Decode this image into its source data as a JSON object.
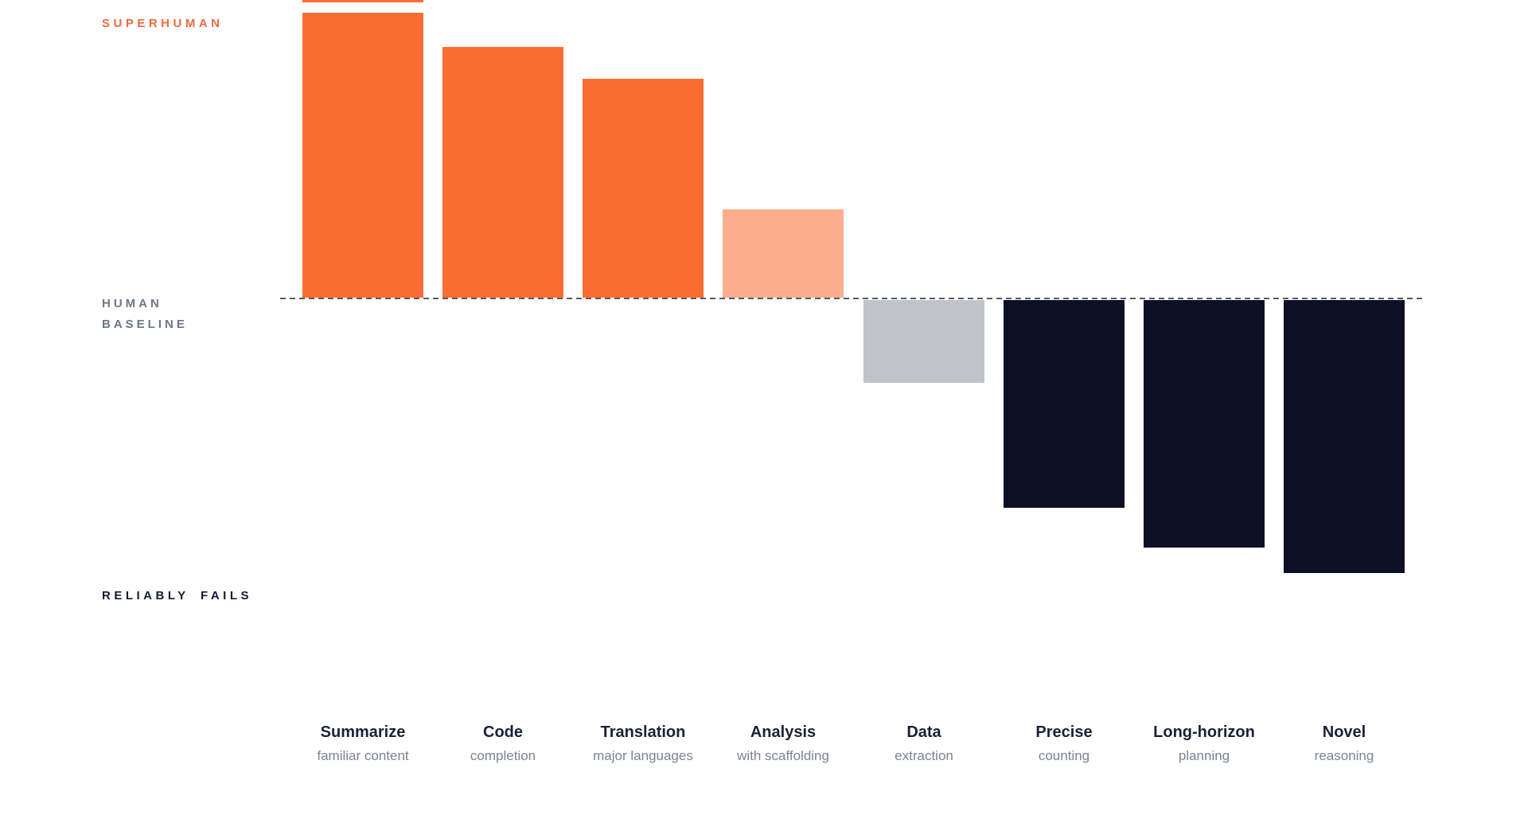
{
  "palette": {
    "orange": "#fc6d33",
    "light_orange": "#fdac8c",
    "gray": "#c2c3c9",
    "navy": "#0b1026",
    "baseline_line": "#575b63",
    "superhuman_text": "#ee6a3e",
    "baseline_text": "#6e7585",
    "fails_text": "#141c31",
    "category_title": "#1b2237",
    "category_sub": "#7c8391",
    "background": "#ffffff"
  },
  "chart_data": {
    "type": "bar",
    "title": "",
    "orientation": "vertical",
    "top_annotation": "SUPERHUMAN",
    "baseline_label_line1": "HUMAN",
    "baseline_label_line2": "BASELINE",
    "bottom_annotation": "RELIABLY FAILS",
    "value_unit": "relative capability vs human baseline (baseline = 0, percent of axis half-range; no numeric axis shown)",
    "ylim": [
      -100,
      100
    ],
    "grid": false,
    "legend": false,
    "baseline_style": "dashed",
    "categories": [
      {
        "label": "Summarize",
        "sublabel": "familiar content",
        "value": 100,
        "color": "orange",
        "clipped_at_top": true
      },
      {
        "label": "Code",
        "sublabel": "completion",
        "value": 88,
        "color": "orange",
        "clipped_at_top": false
      },
      {
        "label": "Translation",
        "sublabel": "major languages",
        "value": 77,
        "color": "orange",
        "clipped_at_top": false
      },
      {
        "label": "Analysis",
        "sublabel": "with scaffolding",
        "value": 31,
        "color": "light_orange",
        "clipped_at_top": false
      },
      {
        "label": "Data",
        "sublabel": "extraction",
        "value": -29,
        "color": "gray",
        "clipped_at_top": false
      },
      {
        "label": "Precise",
        "sublabel": "counting",
        "value": -73,
        "color": "navy",
        "clipped_at_top": false
      },
      {
        "label": "Long-horizon",
        "sublabel": "planning",
        "value": -87,
        "color": "navy",
        "clipped_at_top": false
      },
      {
        "label": "Novel",
        "sublabel": "reasoning",
        "value": -96,
        "color": "navy",
        "clipped_at_top": false
      }
    ]
  }
}
